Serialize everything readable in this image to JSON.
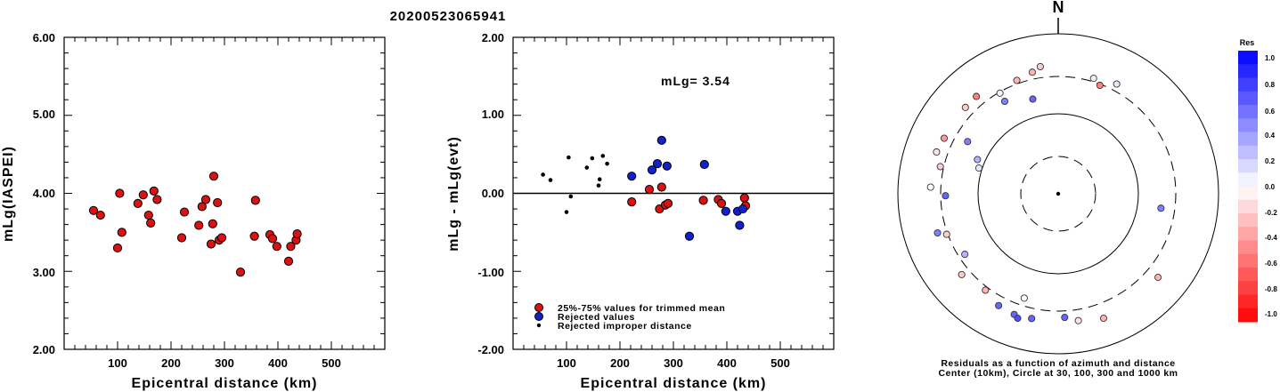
{
  "title": "20200523065941",
  "chart_data": [
    {
      "type": "scatter",
      "ylabel": "mLg(IASPEI)",
      "xlabel": "Epicentral distance (km)",
      "xlim": [
        0,
        600
      ],
      "ylim": [
        2.0,
        6.0
      ],
      "xticks": [
        "100",
        "200",
        "300",
        "400",
        "500"
      ],
      "yticks": [
        "2.00",
        "3.00",
        "4.00",
        "5.00",
        "6.00"
      ],
      "series": [
        {
          "color": "#dd1111",
          "points": [
            [
              55,
              3.78
            ],
            [
              68,
              3.72
            ],
            [
              100,
              3.3
            ],
            [
              104,
              4.0
            ],
            [
              108,
              3.5
            ],
            [
              138,
              3.87
            ],
            [
              148,
              3.98
            ],
            [
              158,
              3.72
            ],
            [
              162,
              3.62
            ],
            [
              168,
              4.03
            ],
            [
              174,
              3.92
            ],
            [
              220,
              3.43
            ],
            [
              225,
              3.76
            ],
            [
              252,
              3.59
            ],
            [
              258,
              3.83
            ],
            [
              265,
              3.92
            ],
            [
              275,
              3.35
            ],
            [
              278,
              3.61
            ],
            [
              280,
              4.22
            ],
            [
              287,
              3.88
            ],
            [
              290,
              3.4
            ],
            [
              295,
              3.43
            ],
            [
              330,
              2.99
            ],
            [
              356,
              3.45
            ],
            [
              358,
              3.91
            ],
            [
              385,
              3.47
            ],
            [
              390,
              3.42
            ],
            [
              398,
              3.32
            ],
            [
              420,
              3.13
            ],
            [
              424,
              3.32
            ],
            [
              434,
              3.4
            ],
            [
              436,
              3.48
            ]
          ]
        }
      ]
    },
    {
      "type": "scatter",
      "ylabel": "mLg - mLg(evt)",
      "xlabel": "Epicentral distance (km)",
      "xlim": [
        0,
        600
      ],
      "ylim": [
        -2.0,
        2.0
      ],
      "xticks": [
        "100",
        "200",
        "300",
        "400",
        "500"
      ],
      "yticks": [
        "-2.00",
        "-1.00",
        "0.00",
        "1.00",
        "2.00"
      ],
      "annotation": "mLg= 3.54",
      "legend": [
        {
          "label": "25%-75% values for trimmed mean",
          "color": "#dd1111",
          "marker": "large"
        },
        {
          "label": "Rejected values",
          "color": "#1122cc",
          "marker": "large"
        },
        {
          "label": "Rejected improper distance",
          "color": "#000000",
          "marker": "small"
        }
      ],
      "series": [
        {
          "name": "25%-75% values for trimmed mean",
          "color": "#dd1111",
          "points": [
            [
              222,
              -0.11
            ],
            [
              255,
              0.05
            ],
            [
              274,
              -0.2
            ],
            [
              278,
              0.08
            ],
            [
              285,
              -0.15
            ],
            [
              290,
              -0.13
            ],
            [
              356,
              -0.09
            ],
            [
              384,
              -0.08
            ],
            [
              390,
              -0.13
            ],
            [
              433,
              -0.06
            ],
            [
              435,
              -0.16
            ]
          ]
        },
        {
          "name": "Rejected values",
          "color": "#1122cc",
          "points": [
            [
              222,
              0.22
            ],
            [
              260,
              0.3
            ],
            [
              270,
              0.38
            ],
            [
              278,
              0.68
            ],
            [
              288,
              0.35
            ],
            [
              330,
              -0.55
            ],
            [
              358,
              0.37
            ],
            [
              398,
              -0.23
            ],
            [
              420,
              -0.23
            ],
            [
              424,
              -0.41
            ],
            [
              430,
              -0.2
            ]
          ]
        },
        {
          "name": "Rejected improper distance",
          "color": "#000000",
          "points": [
            [
              56,
              0.24
            ],
            [
              70,
              0.17
            ],
            [
              100,
              -0.24
            ],
            [
              104,
              0.46
            ],
            [
              108,
              -0.04
            ],
            [
              138,
              0.33
            ],
            [
              148,
              0.45
            ],
            [
              160,
              0.1
            ],
            [
              162,
              0.18
            ],
            [
              168,
              0.48
            ],
            [
              176,
              0.38
            ]
          ]
        }
      ]
    },
    {
      "type": "polar-scatter",
      "north_label": "N",
      "caption_line1": "Residuals as a function of azimuth and distance",
      "caption_line2": "Center (10km), Circle at 30, 100, 300 and 1000 km",
      "colorbar_title": "Res",
      "colorbar_ticks": [
        "1.0",
        "0.8",
        "0.6",
        "0.4",
        "0.2",
        "0.0",
        "-0.2",
        "-0.4",
        "-0.6",
        "-0.8",
        "-1.0"
      ],
      "points": [
        {
          "az": 313,
          "dist": 390,
          "res": -0.2
        },
        {
          "az": 320,
          "dist": 395,
          "res": -0.5
        },
        {
          "az": 340,
          "dist": 330,
          "res": -0.3
        },
        {
          "az": 330,
          "dist": 290,
          "res": 0.05
        },
        {
          "az": 348,
          "dist": 365,
          "res": -0.3
        },
        {
          "az": 352,
          "dist": 410,
          "res": -0.2
        },
        {
          "az": 17,
          "dist": 330,
          "res": 0.05
        },
        {
          "az": 28,
          "dist": 365,
          "res": 0.1
        },
        {
          "az": 330,
          "dist": 220,
          "res": 0.5
        },
        {
          "az": 345,
          "dist": 170,
          "res": 0.6
        },
        {
          "az": 21,
          "dist": 290,
          "res": -0.5
        },
        {
          "az": 296,
          "dist": 390,
          "res": -0.4
        },
        {
          "az": 289,
          "dist": 410,
          "res": -0.1
        },
        {
          "az": 283,
          "dist": 330,
          "res": -0.2
        },
        {
          "az": 300,
          "dist": 205,
          "res": 0.5
        },
        {
          "az": 293,
          "dist": 125,
          "res": 0.3
        },
        {
          "az": 288,
          "dist": 110,
          "res": 0.1
        },
        {
          "az": 273,
          "dist": 400,
          "res": 0.0
        },
        {
          "az": 269,
          "dist": 260,
          "res": 0.6
        },
        {
          "az": 252,
          "dist": 390,
          "res": 0.5
        },
        {
          "az": 250,
          "dist": 310,
          "res": -0.2
        },
        {
          "az": 237,
          "dist": 250,
          "res": 0.3
        },
        {
          "az": 230,
          "dist": 380,
          "res": -0.2
        },
        {
          "az": 217,
          "dist": 330,
          "res": -0.3
        },
        {
          "az": 198,
          "dist": 240,
          "res": 0.0
        },
        {
          "az": 208,
          "dist": 390,
          "res": 0.6
        },
        {
          "az": 200,
          "dist": 410,
          "res": 0.6
        },
        {
          "az": 192,
          "dist": 400,
          "res": 0.6
        },
        {
          "az": 177,
          "dist": 360,
          "res": 0.6
        },
        {
          "az": 171,
          "dist": 410,
          "res": -0.1
        },
        {
          "az": 160,
          "dist": 460,
          "res": -0.3
        },
        {
          "az": 98,
          "dist": 200,
          "res": 0.5
        },
        {
          "az": 130,
          "dist": 430,
          "res": -0.3
        },
        {
          "az": 198,
          "dist": 440,
          "res": 0.7
        }
      ]
    }
  ]
}
